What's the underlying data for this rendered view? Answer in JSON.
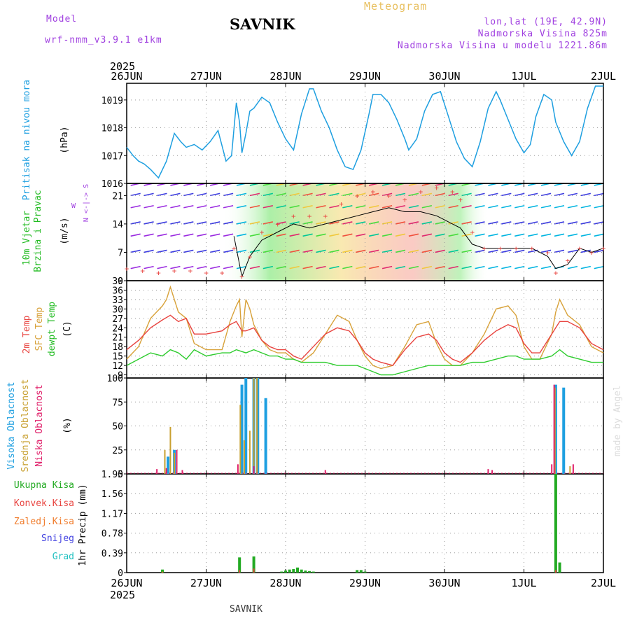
{
  "header": {
    "model_label": "Model",
    "model_name": "wrf-nmm_v3.9.1  e1km",
    "station": "SAVNIK",
    "product": "Meteogram",
    "lonlat": "lon,lat (19E, 42.9N)",
    "elevation": "Nadmorska Visina 825m",
    "model_elevation": "Nadmorska Visina u modelu 1221.86m",
    "credit": "made by Angel",
    "footer_station": "SAVNIK"
  },
  "colors": {
    "pressure": "#1e9fe0",
    "t2m": "#e8433f",
    "sfc": "#d8a23a",
    "dewpt": "#2ecc2e",
    "high_cloud": "#1e9fe0",
    "mid_cloud": "#c8a030",
    "low_cloud": "#e0206a",
    "total_precip": "#22aa22",
    "conv_precip": "#e8433f",
    "frozen_precip": "#f07c2c",
    "snow": "#4040e0",
    "hail": "#20c0c0",
    "wind_label": "#22bb22",
    "purple": "#a040e0"
  },
  "time_axis": {
    "year": "2025",
    "ticks": [
      "26JUN",
      "27JUN",
      "28JUN",
      "29JUN",
      "30JUN",
      "1JUL",
      "2JUL"
    ]
  },
  "chart_data": [
    {
      "type": "line",
      "panel": "pressure",
      "ylabel": "Pritisak na nivou mora",
      "unit": "(hPa)",
      "ylim": [
        1016,
        1019.6
      ],
      "yticks": [
        "1016",
        "1017",
        "1018",
        "1019"
      ],
      "x_unit": "days since 26JUN 00UTC",
      "series": [
        {
          "name": "Pritisak na nivou mora",
          "x": [
            0,
            0.08,
            0.15,
            0.22,
            0.3,
            0.4,
            0.5,
            0.6,
            0.68,
            0.75,
            0.85,
            0.95,
            1.05,
            1.15,
            1.25,
            1.32,
            1.38,
            1.42,
            1.45,
            1.5,
            1.55,
            1.6,
            1.7,
            1.8,
            1.9,
            2.0,
            2.1,
            2.2,
            2.3,
            2.35,
            2.45,
            2.55,
            2.65,
            2.75,
            2.85,
            2.95,
            3.05,
            3.1,
            3.2,
            3.3,
            3.4,
            3.5,
            3.55,
            3.65,
            3.75,
            3.85,
            3.95,
            4.05,
            4.15,
            4.25,
            4.35,
            4.45,
            4.55,
            4.65,
            4.7,
            4.8,
            4.9,
            5.0,
            5.08,
            5.15,
            5.25,
            5.35,
            5.4,
            5.5,
            5.6,
            5.7,
            5.8,
            5.9,
            6.0
          ],
          "y": [
            1017.3,
            1017.0,
            1016.8,
            1016.7,
            1016.5,
            1016.2,
            1016.8,
            1017.8,
            1017.5,
            1017.3,
            1017.4,
            1017.2,
            1017.5,
            1017.9,
            1016.8,
            1017.0,
            1018.9,
            1018.2,
            1017.1,
            1017.8,
            1018.6,
            1018.7,
            1019.1,
            1018.9,
            1018.2,
            1017.6,
            1017.2,
            1018.5,
            1019.4,
            1019.4,
            1018.6,
            1018.0,
            1017.2,
            1016.6,
            1016.5,
            1017.2,
            1018.5,
            1019.2,
            1019.2,
            1018.9,
            1018.3,
            1017.6,
            1017.2,
            1017.6,
            1018.6,
            1019.2,
            1019.3,
            1018.4,
            1017.5,
            1016.9,
            1016.6,
            1017.5,
            1018.7,
            1019.3,
            1019.0,
            1018.3,
            1017.6,
            1017.1,
            1017.4,
            1018.4,
            1019.2,
            1019.0,
            1018.2,
            1017.5,
            1017.0,
            1017.5,
            1018.7,
            1019.5,
            1019.5
          ]
        }
      ]
    },
    {
      "type": "line",
      "panel": "wind",
      "ylabel": "10m Vjetar Brzina i Pravac",
      "unit": "(m/s)",
      "direction_legend": "W <-|-> E",
      "direction_legend_ns": "N <-|-> S",
      "ylim": [
        0,
        24
      ],
      "yticks": [
        "0",
        "7",
        "14",
        "21"
      ],
      "barb_colormap_stops": [
        "#9a2be0",
        "#3c3ce0",
        "#00b4e0",
        "#00c896",
        "#46dc3c",
        "#f0c83c",
        "#f0503c",
        "#e0286e"
      ],
      "series": [
        {
          "name": "Brzina (gusts)",
          "x": [
            0,
            0.2,
            0.4,
            0.6,
            0.8,
            1.0,
            1.2,
            1.35,
            1.45,
            1.55,
            1.7,
            1.9,
            2.1,
            2.3,
            2.5,
            2.7,
            2.9,
            3.1,
            3.3,
            3.5,
            3.7,
            3.9,
            4.1,
            4.2,
            4.35,
            4.5,
            4.7,
            4.9,
            5.1,
            5.3,
            5.4,
            5.55,
            5.7,
            5.85,
            6.0
          ],
          "y": [
            3,
            2.5,
            2,
            2.5,
            2.5,
            2,
            2,
            8,
            1,
            6,
            12,
            14,
            16,
            16,
            16,
            19,
            21,
            22,
            21,
            20,
            22,
            23,
            22,
            20,
            12,
            8,
            8,
            8,
            8,
            7,
            2,
            5,
            8,
            7,
            8
          ]
        },
        {
          "name": "Brzina (mean)",
          "x": [
            1.35,
            1.45,
            1.55,
            1.7,
            1.9,
            2.1,
            2.3,
            2.5,
            2.7,
            2.9,
            3.1,
            3.3,
            3.5,
            3.7,
            3.9,
            4.1,
            4.2,
            4.35,
            4.5,
            4.7,
            4.9,
            5.1,
            5.3,
            5.4,
            5.55,
            5.7,
            5.85,
            6.0
          ],
          "y": [
            11,
            1,
            6,
            10,
            12,
            14,
            13,
            14,
            15,
            16,
            17,
            18,
            17,
            17,
            16,
            14,
            13,
            9,
            8,
            8,
            8,
            8,
            6,
            3,
            4,
            8,
            7,
            8
          ]
        }
      ]
    },
    {
      "type": "line",
      "panel": "temperature",
      "ylabel": "2m Temp / SFC Temp / dewpt Temp",
      "unit": "(C)",
      "ylim": [
        8,
        39
      ],
      "yticks": [
        "9",
        "12",
        "15",
        "18",
        "21",
        "24",
        "27",
        "30",
        "33",
        "36",
        "39"
      ],
      "series": [
        {
          "name": "2m Temp",
          "x": [
            0,
            0.15,
            0.3,
            0.45,
            0.55,
            0.65,
            0.75,
            0.85,
            1.0,
            1.2,
            1.3,
            1.38,
            1.45,
            1.5,
            1.6,
            1.7,
            1.8,
            1.9,
            2.0,
            2.1,
            2.2,
            2.35,
            2.5,
            2.65,
            2.8,
            2.9,
            3.0,
            3.1,
            3.2,
            3.35,
            3.5,
            3.65,
            3.8,
            3.9,
            4.0,
            4.1,
            4.2,
            4.35,
            4.5,
            4.65,
            4.8,
            4.9,
            5.0,
            5.1,
            5.2,
            5.35,
            5.45,
            5.55,
            5.7,
            5.85,
            6.0
          ],
          "y": [
            17,
            20,
            24,
            26.5,
            28,
            26,
            27,
            22,
            22,
            23,
            25,
            26,
            23,
            23,
            24,
            20,
            18,
            17,
            17,
            15,
            14,
            18,
            22,
            24,
            23,
            20,
            16,
            14,
            13,
            12,
            17,
            21,
            22,
            20,
            16,
            14,
            13,
            16,
            20,
            23,
            25,
            24,
            19,
            16,
            16,
            22,
            26,
            26,
            24,
            19,
            17
          ]
        },
        {
          "name": "SFC Temp",
          "x": [
            0,
            0.15,
            0.3,
            0.45,
            0.5,
            0.55,
            0.65,
            0.75,
            0.85,
            1.0,
            1.2,
            1.3,
            1.38,
            1.42,
            1.45,
            1.5,
            1.55,
            1.6,
            1.7,
            1.8,
            1.9,
            2.0,
            2.1,
            2.2,
            2.35,
            2.5,
            2.65,
            2.8,
            2.9,
            3.0,
            3.1,
            3.2,
            3.35,
            3.5,
            3.65,
            3.8,
            3.9,
            4.0,
            4.1,
            4.2,
            4.35,
            4.5,
            4.65,
            4.8,
            4.9,
            5.0,
            5.1,
            5.2,
            5.35,
            5.4,
            5.45,
            5.55,
            5.7,
            5.85,
            6.0
          ],
          "y": [
            14,
            18,
            27,
            31,
            33,
            37,
            29,
            27,
            19,
            17,
            17,
            26,
            31,
            33,
            21,
            33,
            30,
            25,
            20,
            17,
            16,
            16,
            14,
            13,
            16,
            22,
            28,
            26,
            20,
            15,
            12,
            11,
            12,
            18,
            25,
            26,
            19,
            14,
            12,
            12,
            16,
            22,
            30,
            31,
            28,
            18,
            14,
            14,
            22,
            29,
            33,
            28,
            25,
            18,
            16
          ]
        },
        {
          "name": "dewpt Temp",
          "x": [
            0,
            0.15,
            0.3,
            0.45,
            0.55,
            0.65,
            0.75,
            0.85,
            1.0,
            1.2,
            1.3,
            1.38,
            1.5,
            1.6,
            1.7,
            1.8,
            1.9,
            2.0,
            2.1,
            2.2,
            2.35,
            2.5,
            2.65,
            2.8,
            2.9,
            3.0,
            3.1,
            3.2,
            3.35,
            3.5,
            3.65,
            3.8,
            3.9,
            4.0,
            4.1,
            4.2,
            4.35,
            4.5,
            4.65,
            4.8,
            4.9,
            5.0,
            5.1,
            5.2,
            5.35,
            5.45,
            5.55,
            5.7,
            5.85,
            6.0
          ],
          "y": [
            12,
            14,
            16,
            15,
            17,
            16,
            14,
            17,
            15,
            16,
            16,
            17,
            16,
            17,
            16,
            15,
            15,
            14,
            14,
            13,
            13,
            13,
            12,
            12,
            12,
            11,
            10,
            9,
            9,
            10,
            11,
            12,
            12,
            12,
            12,
            12,
            13,
            13,
            14,
            15,
            15,
            14,
            14,
            14,
            15,
            17,
            15,
            14,
            13,
            13
          ]
        }
      ]
    },
    {
      "type": "bar",
      "panel": "clouds",
      "ylabel": "Visoka Oblacnost / Srednja Oblacnost / Niska Oblacnost",
      "unit": "(%)",
      "ylim": [
        0,
        100
      ],
      "yticks": [
        "0",
        "25",
        "50",
        "75",
        "100"
      ],
      "series": [
        {
          "name": "Visoka Oblacnost",
          "x": [
            0.52,
            0.6,
            1.45,
            1.5,
            1.6,
            1.65,
            1.75,
            5.4,
            5.5
          ],
          "y": [
            18,
            25,
            93,
            100,
            100,
            100,
            79,
            93,
            90
          ]
        },
        {
          "name": "Srednja Oblacnost",
          "x": [
            0.48,
            0.55,
            0.6,
            1.43,
            1.48,
            1.55,
            1.6,
            1.64,
            5.39,
            5.58
          ],
          "y": [
            25,
            49,
            22,
            72,
            35,
            45,
            100,
            100,
            90,
            8
          ]
        },
        {
          "name": "Niska Oblacnost",
          "x": [
            0.38,
            0.5,
            0.63,
            0.7,
            1.4,
            1.6,
            2.5,
            4.55,
            4.6,
            5.35,
            5.38,
            5.62
          ],
          "y": [
            5,
            6,
            25,
            4,
            10,
            8,
            4,
            5,
            4,
            10,
            93,
            10
          ]
        }
      ]
    },
    {
      "type": "bar",
      "panel": "precipitation",
      "ylabel": "1hr Precip (mm)",
      "ylim": [
        0,
        1.95
      ],
      "yticks": [
        "0",
        "0.39",
        "0.78",
        "1.17",
        "1.56",
        "1.95"
      ],
      "series": [
        {
          "name": "Ukupna Kisa",
          "x": [
            0.45,
            1.42,
            1.6,
            1.95,
            2.0,
            2.05,
            2.1,
            2.15,
            2.2,
            2.25,
            2.3,
            2.35,
            2.9,
            2.95,
            3.0,
            5.4,
            5.45
          ],
          "y": [
            0.06,
            0.3,
            0.32,
            0.02,
            0.04,
            0.06,
            0.07,
            0.1,
            0.06,
            0.04,
            0.03,
            0.02,
            0.05,
            0.05,
            0.02,
            1.95,
            0.2
          ]
        },
        {
          "name": "Konvek.Kisa",
          "x": [
            1.42,
            1.6,
            5.4
          ],
          "y": [
            0.05,
            0.08,
            0.05
          ]
        },
        {
          "name": "Zaledj.Kisa",
          "x": [
            0.45
          ],
          "y": [
            0.02
          ]
        },
        {
          "name": "Snijeg",
          "x": [],
          "y": []
        },
        {
          "name": "Grad",
          "x": [],
          "y": []
        }
      ]
    }
  ],
  "panels": {
    "pressure_label": "Pritisak na nivou mora",
    "pressure_unit": "(hPa)",
    "wind_label_a": "10m Vjetar",
    "wind_label_b": "Brzina i Pravac",
    "wind_unit": "(m/s)",
    "temp_label_2m": "2m Temp",
    "temp_label_sfc": "SFC Temp",
    "temp_label_dew": "dewpt Temp",
    "temp_unit": "(C)",
    "cloud_high": "Visoka Oblacnost",
    "cloud_mid": "Srednja Oblacnost",
    "cloud_low": "Niska Oblacnost",
    "cloud_unit": "(%)",
    "precip_unit": "1hr Precip (mm)",
    "legend_total": "Ukupna Kisa",
    "legend_conv": "Konvek.Kisa",
    "legend_frozen": "Zaledj.Kisa",
    "legend_snow": "Snijeg",
    "legend_hail": "Grad"
  }
}
